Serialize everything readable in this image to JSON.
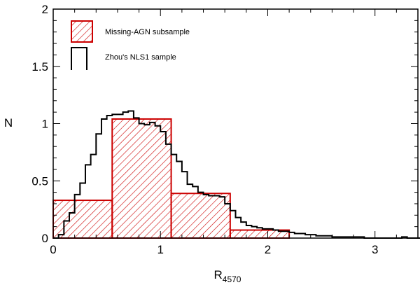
{
  "chart_data": {
    "type": "histogram",
    "xlabel": "R",
    "xlabel_sub": "4570",
    "ylabel": "N",
    "xlim": [
      0,
      3.4
    ],
    "ylim": [
      0,
      2
    ],
    "x_ticks": [
      0,
      1,
      2,
      3
    ],
    "y_ticks": [
      0,
      0.5,
      1,
      1.5,
      2
    ],
    "x_tick_labels": [
      "0",
      "1",
      "2",
      "3"
    ],
    "y_tick_labels": [
      "0",
      "0.5",
      "1",
      "1.5",
      "2"
    ],
    "legend_position": "top-left",
    "series": [
      {
        "name": "Missing-AGN subsample",
        "style": "hatched-step",
        "color": "#cc0000",
        "bin_edges": [
          0,
          0.55,
          1.1,
          1.65,
          2.2
        ],
        "values": [
          0.33,
          1.04,
          0.39,
          0.07
        ]
      },
      {
        "name": "Zhou's NLS1 sample",
        "style": "step",
        "color": "#000000",
        "bin_width": 0.05,
        "bin_start": 0,
        "values": [
          0.0,
          0.03,
          0.15,
          0.22,
          0.38,
          0.48,
          0.64,
          0.73,
          0.91,
          1.04,
          1.07,
          1.08,
          1.08,
          1.1,
          1.11,
          1.05,
          1.0,
          0.99,
          1.01,
          0.98,
          0.93,
          0.82,
          0.73,
          0.67,
          0.58,
          0.47,
          0.45,
          0.4,
          0.38,
          0.37,
          0.37,
          0.36,
          0.3,
          0.24,
          0.18,
          0.14,
          0.11,
          0.1,
          0.09,
          0.08,
          0.08,
          0.07,
          0.06,
          0.06,
          0.05,
          0.04,
          0.04,
          0.03,
          0.03,
          0.02,
          0.02,
          0.02,
          0.01,
          0.01,
          0.01,
          0.01,
          0.01,
          0.01,
          0.0,
          0.0,
          0.0,
          0.0,
          0.0,
          0.0,
          0.0,
          0.01,
          0.0,
          0.0,
          0.0
        ]
      }
    ]
  }
}
